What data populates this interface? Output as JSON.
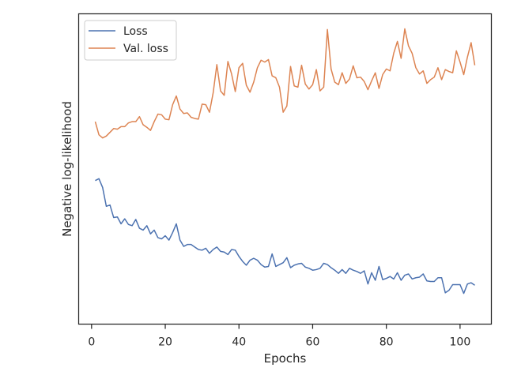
{
  "chart_data": {
    "type": "line",
    "title": "",
    "xlabel": "Epochs",
    "ylabel": "Negative log-likelihood",
    "xlim": [
      -3.5,
      108.5
    ],
    "ylim": [
      -0.2,
      4.75
    ],
    "xticks": [
      0,
      20,
      40,
      60,
      80,
      100
    ],
    "yticks_shown": false,
    "grid": false,
    "legend": {
      "placement": "upper-left"
    },
    "series": [
      {
        "name": "Loss",
        "color": "#4c72b0",
        "x": [
          1,
          2,
          3,
          4,
          5,
          6,
          7,
          8,
          9,
          10,
          11,
          12,
          13,
          14,
          15,
          16,
          17,
          18,
          19,
          20,
          21,
          22,
          23,
          24,
          25,
          26,
          27,
          28,
          29,
          30,
          31,
          32,
          33,
          34,
          35,
          36,
          37,
          38,
          39,
          40,
          41,
          42,
          43,
          44,
          45,
          46,
          47,
          48,
          49,
          50,
          51,
          52,
          53,
          54,
          55,
          56,
          57,
          58,
          59,
          60,
          61,
          62,
          63,
          64,
          65,
          66,
          67,
          68,
          69,
          70,
          71,
          72,
          73,
          74,
          75,
          76,
          77,
          78,
          79,
          80,
          81,
          82,
          83,
          84,
          85,
          86,
          87,
          88,
          89,
          90,
          91,
          92,
          93,
          94,
          95,
          96,
          97,
          98,
          99,
          100,
          101,
          102,
          103,
          104
        ],
        "y": [
          2.09,
          2.12,
          1.98,
          1.68,
          1.7,
          1.5,
          1.51,
          1.4,
          1.48,
          1.39,
          1.37,
          1.47,
          1.33,
          1.3,
          1.37,
          1.24,
          1.3,
          1.18,
          1.16,
          1.21,
          1.14,
          1.26,
          1.4,
          1.14,
          1.04,
          1.07,
          1.07,
          1.03,
          0.99,
          0.98,
          1.01,
          0.93,
          0.99,
          1.03,
          0.96,
          0.95,
          0.91,
          0.99,
          0.98,
          0.88,
          0.8,
          0.74,
          0.82,
          0.85,
          0.82,
          0.75,
          0.71,
          0.72,
          0.92,
          0.72,
          0.75,
          0.78,
          0.86,
          0.7,
          0.74,
          0.76,
          0.77,
          0.71,
          0.69,
          0.66,
          0.67,
          0.69,
          0.77,
          0.75,
          0.7,
          0.66,
          0.61,
          0.67,
          0.61,
          0.69,
          0.66,
          0.64,
          0.61,
          0.65,
          0.44,
          0.62,
          0.5,
          0.72,
          0.51,
          0.53,
          0.56,
          0.52,
          0.62,
          0.5,
          0.58,
          0.6,
          0.52,
          0.54,
          0.55,
          0.6,
          0.49,
          0.48,
          0.48,
          0.54,
          0.54,
          0.3,
          0.34,
          0.43,
          0.43,
          0.43,
          0.29,
          0.44,
          0.46,
          0.42
        ]
      },
      {
        "name": "Val. loss",
        "color": "#dd8452",
        "x": [
          1,
          2,
          3,
          4,
          5,
          6,
          7,
          8,
          9,
          10,
          11,
          12,
          13,
          14,
          15,
          16,
          17,
          18,
          19,
          20,
          21,
          22,
          23,
          24,
          25,
          26,
          27,
          28,
          29,
          30,
          31,
          32,
          33,
          34,
          35,
          36,
          37,
          38,
          39,
          40,
          41,
          42,
          43,
          44,
          45,
          46,
          47,
          48,
          49,
          50,
          51,
          52,
          53,
          54,
          55,
          56,
          57,
          58,
          59,
          60,
          61,
          62,
          63,
          64,
          65,
          66,
          67,
          68,
          69,
          70,
          71,
          72,
          73,
          74,
          75,
          76,
          77,
          78,
          79,
          80,
          81,
          82,
          83,
          84,
          85,
          86,
          87,
          88,
          89,
          90,
          91,
          92,
          93,
          94,
          95,
          96,
          97,
          98,
          99,
          100,
          101,
          102,
          103,
          104
        ],
        "y": [
          3.03,
          2.82,
          2.77,
          2.8,
          2.86,
          2.92,
          2.91,
          2.95,
          2.95,
          3.01,
          3.03,
          3.03,
          3.11,
          2.98,
          2.94,
          2.89,
          3.03,
          3.15,
          3.14,
          3.07,
          3.06,
          3.3,
          3.44,
          3.23,
          3.16,
          3.17,
          3.1,
          3.08,
          3.07,
          3.31,
          3.3,
          3.18,
          3.49,
          3.94,
          3.52,
          3.45,
          3.99,
          3.79,
          3.51,
          3.89,
          3.96,
          3.61,
          3.5,
          3.66,
          3.89,
          4.01,
          3.98,
          4.02,
          3.76,
          3.73,
          3.58,
          3.18,
          3.28,
          3.91,
          3.6,
          3.58,
          3.93,
          3.63,
          3.55,
          3.62,
          3.86,
          3.52,
          3.58,
          4.5,
          3.87,
          3.66,
          3.62,
          3.81,
          3.64,
          3.71,
          3.92,
          3.73,
          3.74,
          3.67,
          3.54,
          3.68,
          3.81,
          3.56,
          3.78,
          3.87,
          3.84,
          4.12,
          4.31,
          4.04,
          4.51,
          4.24,
          4.12,
          3.89,
          3.79,
          3.84,
          3.64,
          3.7,
          3.74,
          3.89,
          3.7,
          3.86,
          3.83,
          3.81,
          4.16,
          3.98,
          3.78,
          4.06,
          4.29,
          3.93
        ]
      }
    ]
  }
}
